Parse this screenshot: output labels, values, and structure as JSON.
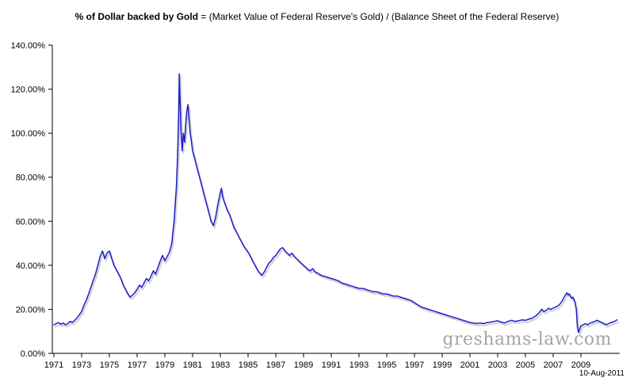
{
  "title": {
    "bold": "% of Dollar backed by Gold",
    "rest": " = (Market Value of Federal Reserve's Gold) / (Balance Sheet of the Federal Reserve)"
  },
  "watermark": "greshams-law.com",
  "date_label": "10-Aug-2011",
  "chart_data": {
    "type": "line",
    "title": "% of Dollar backed by Gold = (Market Value of Federal Reserve's Gold) / (Balance Sheet of the Federal Reserve)",
    "xlabel": "",
    "ylabel": "",
    "grid": false,
    "legend": "none",
    "line_color": "#1c1ccd",
    "shadow_color": "#c9c9c9",
    "axis_color": "#000000",
    "xlim": [
      1971,
      2011.8
    ],
    "ylim": [
      0,
      140
    ],
    "x_ticks": [
      1971,
      1973,
      1975,
      1977,
      1979,
      1981,
      1983,
      1985,
      1987,
      1989,
      1991,
      1993,
      1995,
      1997,
      1999,
      2001,
      2003,
      2005,
      2007,
      2009
    ],
    "y_ticks": {
      "values": [
        0,
        20,
        40,
        60,
        80,
        100,
        120,
        140
      ],
      "labels": [
        "0.00%",
        "20.00%",
        "40.00%",
        "60.00%",
        "80.00%",
        "100.00%",
        "120.00%",
        "140.00%"
      ]
    },
    "series": [
      {
        "name": "% of Dollar backed by Gold",
        "points": [
          [
            1971.0,
            13.0
          ],
          [
            1971.17,
            13.5
          ],
          [
            1971.33,
            14.0
          ],
          [
            1971.5,
            13.2
          ],
          [
            1971.67,
            13.8
          ],
          [
            1971.83,
            13.0
          ],
          [
            1972.0,
            13.5
          ],
          [
            1972.17,
            14.5
          ],
          [
            1972.33,
            14.0
          ],
          [
            1972.5,
            15.0
          ],
          [
            1972.67,
            16.0
          ],
          [
            1972.83,
            17.5
          ],
          [
            1973.0,
            19.0
          ],
          [
            1973.17,
            22.0
          ],
          [
            1973.33,
            24.0
          ],
          [
            1973.5,
            27.0
          ],
          [
            1973.67,
            30.0
          ],
          [
            1973.83,
            33.0
          ],
          [
            1974.0,
            36.0
          ],
          [
            1974.17,
            40.0
          ],
          [
            1974.33,
            44.0
          ],
          [
            1974.5,
            46.5
          ],
          [
            1974.67,
            43.0
          ],
          [
            1974.83,
            45.5
          ],
          [
            1975.0,
            46.5
          ],
          [
            1975.17,
            43.0
          ],
          [
            1975.33,
            40.0
          ],
          [
            1975.5,
            38.0
          ],
          [
            1975.67,
            36.0
          ],
          [
            1975.83,
            34.0
          ],
          [
            1976.0,
            31.0
          ],
          [
            1976.17,
            29.0
          ],
          [
            1976.33,
            27.0
          ],
          [
            1976.5,
            25.5
          ],
          [
            1976.67,
            26.5
          ],
          [
            1976.83,
            27.5
          ],
          [
            1977.0,
            29.0
          ],
          [
            1977.17,
            31.0
          ],
          [
            1977.33,
            30.0
          ],
          [
            1977.5,
            32.0
          ],
          [
            1977.67,
            34.0
          ],
          [
            1977.83,
            33.0
          ],
          [
            1978.0,
            35.0
          ],
          [
            1978.17,
            37.5
          ],
          [
            1978.33,
            36.0
          ],
          [
            1978.5,
            39.0
          ],
          [
            1978.67,
            42.0
          ],
          [
            1978.83,
            44.5
          ],
          [
            1979.0,
            42.0
          ],
          [
            1979.17,
            44.0
          ],
          [
            1979.33,
            46.0
          ],
          [
            1979.5,
            50.0
          ],
          [
            1979.58,
            55.0
          ],
          [
            1979.67,
            60.0
          ],
          [
            1979.75,
            68.0
          ],
          [
            1979.83,
            75.0
          ],
          [
            1979.92,
            90.0
          ],
          [
            1980.0,
            110.0
          ],
          [
            1980.04,
            127.0
          ],
          [
            1980.08,
            118.0
          ],
          [
            1980.17,
            100.0
          ],
          [
            1980.25,
            92.0
          ],
          [
            1980.33,
            100.0
          ],
          [
            1980.42,
            96.0
          ],
          [
            1980.5,
            104.0
          ],
          [
            1980.58,
            110.0
          ],
          [
            1980.67,
            113.0
          ],
          [
            1980.75,
            106.0
          ],
          [
            1980.83,
            100.0
          ],
          [
            1980.92,
            96.0
          ],
          [
            1981.0,
            92.0
          ],
          [
            1981.17,
            88.0
          ],
          [
            1981.33,
            84.0
          ],
          [
            1981.5,
            80.0
          ],
          [
            1981.67,
            76.0
          ],
          [
            1981.83,
            72.0
          ],
          [
            1982.0,
            68.0
          ],
          [
            1982.17,
            64.0
          ],
          [
            1982.33,
            60.0
          ],
          [
            1982.5,
            58.0
          ],
          [
            1982.67,
            62.0
          ],
          [
            1982.83,
            68.0
          ],
          [
            1983.0,
            73.0
          ],
          [
            1983.08,
            75.0
          ],
          [
            1983.17,
            71.0
          ],
          [
            1983.33,
            68.0
          ],
          [
            1983.5,
            65.0
          ],
          [
            1983.67,
            63.0
          ],
          [
            1983.83,
            60.0
          ],
          [
            1984.0,
            57.0
          ],
          [
            1984.17,
            55.0
          ],
          [
            1984.33,
            53.0
          ],
          [
            1984.5,
            51.0
          ],
          [
            1984.67,
            49.0
          ],
          [
            1984.83,
            47.5
          ],
          [
            1985.0,
            46.0
          ],
          [
            1985.17,
            44.0
          ],
          [
            1985.33,
            42.0
          ],
          [
            1985.5,
            40.0
          ],
          [
            1985.67,
            38.0
          ],
          [
            1985.83,
            36.5
          ],
          [
            1986.0,
            35.5
          ],
          [
            1986.17,
            37.0
          ],
          [
            1986.33,
            39.0
          ],
          [
            1986.5,
            41.0
          ],
          [
            1986.67,
            42.0
          ],
          [
            1986.83,
            43.5
          ],
          [
            1987.0,
            44.5
          ],
          [
            1987.17,
            46.0
          ],
          [
            1987.33,
            47.5
          ],
          [
            1987.5,
            48.0
          ],
          [
            1987.67,
            46.5
          ],
          [
            1987.83,
            45.5
          ],
          [
            1988.0,
            44.5
          ],
          [
            1988.17,
            45.5
          ],
          [
            1988.33,
            44.0
          ],
          [
            1988.5,
            43.0
          ],
          [
            1988.67,
            42.0
          ],
          [
            1988.83,
            41.0
          ],
          [
            1989.0,
            40.0
          ],
          [
            1989.17,
            39.0
          ],
          [
            1989.33,
            38.0
          ],
          [
            1989.5,
            37.5
          ],
          [
            1989.67,
            38.5
          ],
          [
            1989.83,
            37.0
          ],
          [
            1990.0,
            36.5
          ],
          [
            1990.25,
            35.5
          ],
          [
            1990.5,
            35.0
          ],
          [
            1990.75,
            34.5
          ],
          [
            1991.0,
            34.0
          ],
          [
            1991.25,
            33.5
          ],
          [
            1991.5,
            33.0
          ],
          [
            1991.75,
            32.0
          ],
          [
            1992.0,
            31.5
          ],
          [
            1992.25,
            31.0
          ],
          [
            1992.5,
            30.5
          ],
          [
            1992.75,
            30.0
          ],
          [
            1993.0,
            29.5
          ],
          [
            1993.25,
            29.5
          ],
          [
            1993.5,
            29.0
          ],
          [
            1993.75,
            28.5
          ],
          [
            1994.0,
            28.0
          ],
          [
            1994.25,
            28.0
          ],
          [
            1994.5,
            27.5
          ],
          [
            1994.75,
            27.0
          ],
          [
            1995.0,
            27.0
          ],
          [
            1995.25,
            26.5
          ],
          [
            1995.5,
            26.0
          ],
          [
            1995.75,
            26.0
          ],
          [
            1996.0,
            25.5
          ],
          [
            1996.25,
            25.0
          ],
          [
            1996.5,
            24.5
          ],
          [
            1996.75,
            24.0
          ],
          [
            1997.0,
            23.0
          ],
          [
            1997.25,
            22.0
          ],
          [
            1997.5,
            21.0
          ],
          [
            1997.75,
            20.5
          ],
          [
            1998.0,
            20.0
          ],
          [
            1998.25,
            19.5
          ],
          [
            1998.5,
            19.0
          ],
          [
            1998.75,
            18.5
          ],
          [
            1999.0,
            18.0
          ],
          [
            1999.25,
            17.5
          ],
          [
            1999.5,
            17.0
          ],
          [
            1999.75,
            16.5
          ],
          [
            2000.0,
            16.0
          ],
          [
            2000.25,
            15.5
          ],
          [
            2000.5,
            15.0
          ],
          [
            2000.75,
            14.5
          ],
          [
            2001.0,
            14.0
          ],
          [
            2001.25,
            13.8
          ],
          [
            2001.5,
            13.5
          ],
          [
            2001.75,
            13.8
          ],
          [
            2002.0,
            13.5
          ],
          [
            2002.25,
            14.0
          ],
          [
            2002.5,
            14.2
          ],
          [
            2002.75,
            14.5
          ],
          [
            2003.0,
            14.8
          ],
          [
            2003.25,
            14.2
          ],
          [
            2003.5,
            13.8
          ],
          [
            2003.75,
            14.5
          ],
          [
            2004.0,
            15.0
          ],
          [
            2004.25,
            14.5
          ],
          [
            2004.5,
            14.8
          ],
          [
            2004.75,
            15.2
          ],
          [
            2005.0,
            15.0
          ],
          [
            2005.25,
            15.5
          ],
          [
            2005.5,
            16.0
          ],
          [
            2005.75,
            17.0
          ],
          [
            2006.0,
            18.5
          ],
          [
            2006.17,
            20.0
          ],
          [
            2006.33,
            19.0
          ],
          [
            2006.5,
            19.5
          ],
          [
            2006.67,
            20.5
          ],
          [
            2006.83,
            20.0
          ],
          [
            2007.0,
            20.5
          ],
          [
            2007.17,
            21.0
          ],
          [
            2007.33,
            21.5
          ],
          [
            2007.5,
            22.5
          ],
          [
            2007.67,
            24.0
          ],
          [
            2007.83,
            26.0
          ],
          [
            2008.0,
            27.5
          ],
          [
            2008.08,
            26.5
          ],
          [
            2008.17,
            27.0
          ],
          [
            2008.25,
            26.0
          ],
          [
            2008.33,
            25.0
          ],
          [
            2008.42,
            25.5
          ],
          [
            2008.5,
            24.5
          ],
          [
            2008.58,
            23.0
          ],
          [
            2008.67,
            20.0
          ],
          [
            2008.75,
            12.0
          ],
          [
            2008.83,
            9.5
          ],
          [
            2008.92,
            11.0
          ],
          [
            2009.0,
            12.5
          ],
          [
            2009.17,
            13.0
          ],
          [
            2009.33,
            13.5
          ],
          [
            2009.5,
            13.0
          ],
          [
            2009.67,
            13.8
          ],
          [
            2009.83,
            14.0
          ],
          [
            2010.0,
            14.5
          ],
          [
            2010.17,
            15.0
          ],
          [
            2010.33,
            14.5
          ],
          [
            2010.5,
            14.0
          ],
          [
            2010.67,
            13.5
          ],
          [
            2010.83,
            13.0
          ],
          [
            2011.0,
            13.5
          ],
          [
            2011.17,
            14.0
          ],
          [
            2011.33,
            14.2
          ],
          [
            2011.5,
            14.8
          ],
          [
            2011.6,
            15.2
          ]
        ]
      }
    ]
  }
}
